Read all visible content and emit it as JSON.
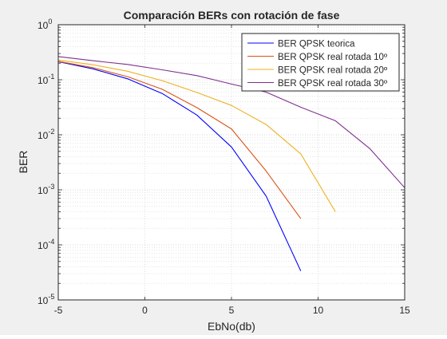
{
  "chart_data": {
    "type": "line",
    "title": "Comparación BERs con rotación de fase",
    "xlabel": "EbNo(db)",
    "ylabel": "BER",
    "xlim": [
      -5,
      15
    ],
    "ylim": [
      1e-05,
      1
    ],
    "yscale": "log",
    "grid": true,
    "minor_grid": true,
    "legend_position": "top-right",
    "x_ticks": [
      -5,
      0,
      5,
      10,
      15
    ],
    "y_ticks": [
      {
        "base": "10",
        "exp": "0",
        "value": 1
      },
      {
        "base": "10",
        "exp": "-1",
        "value": 0.1
      },
      {
        "base": "10",
        "exp": "-2",
        "value": 0.01
      },
      {
        "base": "10",
        "exp": "-3",
        "value": 0.001
      },
      {
        "base": "10",
        "exp": "-4",
        "value": 0.0001
      },
      {
        "base": "10",
        "exp": "-5",
        "value": 1e-05
      }
    ],
    "series": [
      {
        "name": "BER QPSK teorica",
        "color": "#0000ff",
        "points": [
          [
            -5,
            0.213
          ],
          [
            -3,
            0.158
          ],
          [
            -1,
            0.104
          ],
          [
            1,
            0.0563
          ],
          [
            3,
            0.0229
          ],
          [
            5,
            0.006
          ],
          [
            7,
            0.00077
          ],
          [
            9,
            3.36e-05
          ]
        ]
      },
      {
        "name": "BER QPSK real rotada 10º",
        "color": "#d95319",
        "points": [
          [
            -5,
            0.216
          ],
          [
            -3,
            0.166
          ],
          [
            -1,
            0.114
          ],
          [
            1,
            0.0672
          ],
          [
            3,
            0.0312
          ],
          [
            5,
            0.0128
          ],
          [
            7,
            0.0022
          ],
          [
            9,
            0.0003
          ]
        ]
      },
      {
        "name": "BER QPSK real rotada 20º",
        "color": "#edb120",
        "points": [
          [
            -5,
            0.228
          ],
          [
            -3,
            0.187
          ],
          [
            -1,
            0.143
          ],
          [
            1,
            0.0965
          ],
          [
            3,
            0.0588
          ],
          [
            5,
            0.0342
          ],
          [
            7,
            0.0154
          ],
          [
            9,
            0.0045
          ],
          [
            11,
            0.0004
          ]
        ]
      },
      {
        "name": "BER QPSK real rotada 30º",
        "color": "#7e2f8e",
        "points": [
          [
            -5,
            0.264
          ],
          [
            -3,
            0.222
          ],
          [
            -1,
            0.19
          ],
          [
            1,
            0.152
          ],
          [
            3,
            0.119
          ],
          [
            5,
            0.0835
          ],
          [
            7,
            0.0596
          ],
          [
            9,
            0.0317
          ],
          [
            11,
            0.018
          ],
          [
            13,
            0.00555
          ],
          [
            15,
            0.00109
          ]
        ]
      }
    ]
  }
}
